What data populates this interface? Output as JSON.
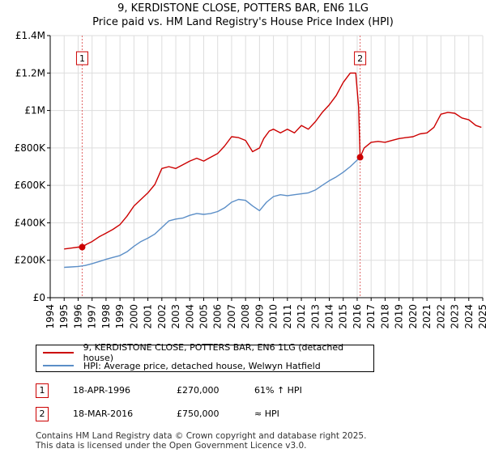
{
  "chart_data": {
    "type": "line",
    "title": "9, KERDISTONE CLOSE, POTTERS BAR, EN6 1LG",
    "subtitle": "Price paid vs. HM Land Registry's House Price Index (HPI)",
    "xlabel": "",
    "ylabel": "",
    "xlim": [
      1994,
      2025
    ],
    "ylim": [
      0,
      1400000
    ],
    "x_ticks": [
      1994,
      1995,
      1996,
      1997,
      1998,
      1999,
      2000,
      2001,
      2002,
      2003,
      2004,
      2005,
      2006,
      2007,
      2008,
      2009,
      2010,
      2011,
      2012,
      2013,
      2014,
      2015,
      2016,
      2017,
      2018,
      2019,
      2020,
      2021,
      2022,
      2023,
      2024,
      2025
    ],
    "x_tick_labels": [
      "1994",
      "1995",
      "1996",
      "1997",
      "1998",
      "1999",
      "2000",
      "2001",
      "2002",
      "2003",
      "2004",
      "2005",
      "2006",
      "2007",
      "2008",
      "2009",
      "2010",
      "2011",
      "2012",
      "2013",
      "2014",
      "2015",
      "2016",
      "2017",
      "2018",
      "2019",
      "2020",
      "2021",
      "2022",
      "2023",
      "2024",
      "2025"
    ],
    "y_ticks": [
      0,
      200000,
      400000,
      600000,
      800000,
      1000000,
      1200000,
      1400000
    ],
    "y_tick_labels": [
      "£0",
      "£200K",
      "£400K",
      "£600K",
      "£800K",
      "£1M",
      "£1.2M",
      "£1.4M"
    ],
    "grid": true,
    "series": [
      {
        "name": "9, KERDISTONE CLOSE, POTTERS BAR, EN6 1LG (detached house)",
        "color": "#cc0000",
        "x": [
          1995.0,
          1995.5,
          1996.0,
          1996.29,
          1996.6,
          1997.0,
          1997.5,
          1998.0,
          1998.5,
          1999.0,
          1999.5,
          2000.0,
          2000.5,
          2001.0,
          2001.5,
          2002.0,
          2002.5,
          2003.0,
          2003.5,
          2004.0,
          2004.5,
          2005.0,
          2005.5,
          2006.0,
          2006.5,
          2007.0,
          2007.5,
          2008.0,
          2008.5,
          2009.0,
          2009.3,
          2009.7,
          2010.0,
          2010.5,
          2011.0,
          2011.5,
          2012.0,
          2012.5,
          2013.0,
          2013.5,
          2014.0,
          2014.5,
          2015.0,
          2015.5,
          2015.9,
          2016.1,
          2016.21,
          2016.5,
          2017.0,
          2017.5,
          2018.0,
          2018.5,
          2019.0,
          2019.5,
          2020.0,
          2020.5,
          2021.0,
          2021.5,
          2022.0,
          2022.5,
          2023.0,
          2023.5,
          2024.0,
          2024.5,
          2024.9
        ],
        "values": [
          260000,
          265000,
          270000,
          270000,
          285000,
          300000,
          325000,
          345000,
          365000,
          390000,
          435000,
          490000,
          525000,
          560000,
          605000,
          690000,
          700000,
          690000,
          710000,
          730000,
          745000,
          730000,
          750000,
          770000,
          810000,
          860000,
          855000,
          840000,
          780000,
          800000,
          850000,
          890000,
          900000,
          880000,
          900000,
          880000,
          920000,
          900000,
          940000,
          990000,
          1030000,
          1080000,
          1150000,
          1200000,
          1200000,
          1020000,
          750000,
          800000,
          830000,
          835000,
          830000,
          840000,
          850000,
          855000,
          860000,
          875000,
          880000,
          910000,
          980000,
          990000,
          985000,
          960000,
          950000,
          920000,
          910000
        ]
      },
      {
        "name": "HPI: Average price, detached house, Welwyn Hatfield",
        "color": "#5b8ec7",
        "x": [
          1995.0,
          1995.5,
          1996.0,
          1996.5,
          1997.0,
          1997.5,
          1998.0,
          1998.5,
          1999.0,
          1999.5,
          2000.0,
          2000.5,
          2001.0,
          2001.5,
          2002.0,
          2002.5,
          2003.0,
          2003.5,
          2004.0,
          2004.5,
          2005.0,
          2005.5,
          2006.0,
          2006.5,
          2007.0,
          2007.5,
          2008.0,
          2008.5,
          2009.0,
          2009.5,
          2010.0,
          2010.5,
          2011.0,
          2011.5,
          2012.0,
          2012.5,
          2013.0,
          2013.5,
          2014.0,
          2014.5,
          2015.0,
          2015.5,
          2016.0,
          2016.21
        ],
        "values": [
          162000,
          164000,
          167000,
          172000,
          182000,
          193000,
          205000,
          215000,
          225000,
          245000,
          275000,
          300000,
          318000,
          340000,
          375000,
          410000,
          420000,
          425000,
          440000,
          450000,
          445000,
          450000,
          460000,
          480000,
          510000,
          525000,
          520000,
          490000,
          465000,
          510000,
          540000,
          550000,
          545000,
          550000,
          555000,
          560000,
          575000,
          600000,
          625000,
          645000,
          670000,
          700000,
          735000,
          750000
        ]
      }
    ],
    "sales": [
      {
        "label": "1",
        "x": 1996.29,
        "price": 270000
      },
      {
        "label": "2",
        "x": 2016.21,
        "price": 750000
      }
    ]
  },
  "legend": {
    "items": [
      {
        "label": "9, KERDISTONE CLOSE, POTTERS BAR, EN6 1LG (detached house)",
        "color": "#cc0000"
      },
      {
        "label": "HPI: Average price, detached house, Welwyn Hatfield",
        "color": "#5b8ec7"
      }
    ]
  },
  "sales_table": [
    {
      "num": "1",
      "date": "18-APR-1996",
      "price": "£270,000",
      "relation": "61% ↑ HPI"
    },
    {
      "num": "2",
      "date": "18-MAR-2016",
      "price": "£750,000",
      "relation": "≈ HPI"
    }
  ],
  "footer": {
    "line1": "Contains HM Land Registry data © Crown copyright and database right 2025.",
    "line2": "This data is licensed under the Open Government Licence v3.0."
  }
}
